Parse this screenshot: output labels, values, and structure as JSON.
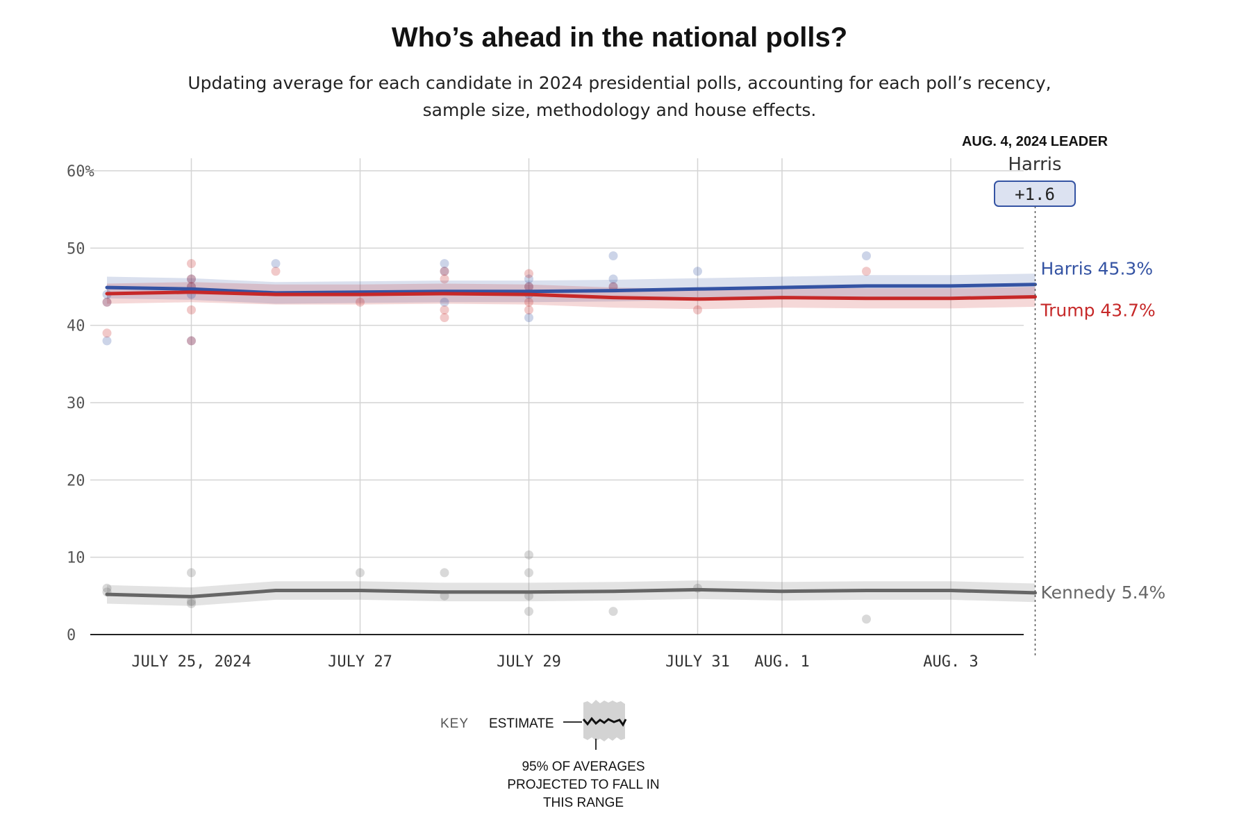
{
  "title": "Who’s ahead in the national polls?",
  "subtitle_line1": "Updating average for each candidate in 2024 presidential polls, accounting for each poll’s recency,",
  "subtitle_line2": "sample size, methodology and house effects.",
  "leader": {
    "date_label": "AUG. 4, 2024 LEADER",
    "name": "Harris",
    "margin": "+1.6"
  },
  "key": {
    "label": "KEY",
    "estimate": "ESTIMATE",
    "range_line1": "95% OF AVERAGES",
    "range_line2": "PROJECTED TO FALL IN",
    "range_line3": "THIS RANGE"
  },
  "colors": {
    "harris": "#3453a3",
    "trump": "#c62828",
    "kennedy": "#666666",
    "grid": "#d4d4d4",
    "badge_fill": "#dce2f1",
    "badge_stroke": "#3453a3"
  },
  "chart_data": {
    "type": "line",
    "ylim": [
      0,
      60
    ],
    "yticks": [
      0,
      10,
      20,
      30,
      40,
      50,
      60
    ],
    "ytick_labels": [
      "0",
      "10",
      "20",
      "30",
      "40",
      "50",
      "60%"
    ],
    "x_start": "2024-07-24",
    "x_end": "2024-08-04",
    "xtick_labels": [
      {
        "date": "2024-07-25",
        "label": "JULY 25, 2024"
      },
      {
        "date": "2024-07-27",
        "label": "JULY 27"
      },
      {
        "date": "2024-07-29",
        "label": "JULY 29"
      },
      {
        "date": "2024-07-31",
        "label": "JULY 31"
      },
      {
        "date": "2024-08-01",
        "label": "AUG. 1"
      },
      {
        "date": "2024-08-03",
        "label": "AUG. 3"
      }
    ],
    "series": [
      {
        "name": "Harris",
        "key": "harris",
        "end_label": "Harris 45.3%",
        "x": [
          "2024-07-24",
          "2024-07-25",
          "2024-07-26",
          "2024-07-27",
          "2024-07-28",
          "2024-07-29",
          "2024-07-30",
          "2024-07-31",
          "2024-08-01",
          "2024-08-02",
          "2024-08-03",
          "2024-08-04"
        ],
        "y": [
          44.9,
          44.7,
          44.2,
          44.3,
          44.4,
          44.4,
          44.5,
          44.7,
          44.9,
          45.1,
          45.1,
          45.3
        ],
        "band": 1.4,
        "polls": [
          [
            "2024-07-24",
            44
          ],
          [
            "2024-07-24",
            38
          ],
          [
            "2024-07-24",
            43
          ],
          [
            "2024-07-25",
            46
          ],
          [
            "2024-07-25",
            45
          ],
          [
            "2024-07-25",
            44
          ],
          [
            "2024-07-25",
            38
          ],
          [
            "2024-07-26",
            48
          ],
          [
            "2024-07-28",
            48
          ],
          [
            "2024-07-28",
            47
          ],
          [
            "2024-07-28",
            43
          ],
          [
            "2024-07-29",
            46
          ],
          [
            "2024-07-29",
            45
          ],
          [
            "2024-07-29",
            44
          ],
          [
            "2024-07-29",
            41
          ],
          [
            "2024-07-30",
            49
          ],
          [
            "2024-07-30",
            46
          ],
          [
            "2024-07-30",
            45
          ],
          [
            "2024-07-31",
            47
          ],
          [
            "2024-08-02",
            49
          ]
        ]
      },
      {
        "name": "Trump",
        "key": "trump",
        "end_label": "Trump 43.7%",
        "x": [
          "2024-07-24",
          "2024-07-25",
          "2024-07-26",
          "2024-07-27",
          "2024-07-28",
          "2024-07-29",
          "2024-07-30",
          "2024-07-31",
          "2024-08-01",
          "2024-08-02",
          "2024-08-03",
          "2024-08-04"
        ],
        "y": [
          44.1,
          44.3,
          44.0,
          44.0,
          44.1,
          44.0,
          43.6,
          43.4,
          43.6,
          43.5,
          43.5,
          43.7
        ],
        "band": 1.3,
        "polls": [
          [
            "2024-07-24",
            43
          ],
          [
            "2024-07-24",
            39
          ],
          [
            "2024-07-25",
            48
          ],
          [
            "2024-07-25",
            46
          ],
          [
            "2024-07-25",
            45
          ],
          [
            "2024-07-25",
            42
          ],
          [
            "2024-07-25",
            38
          ],
          [
            "2024-07-26",
            47
          ],
          [
            "2024-07-27",
            43
          ],
          [
            "2024-07-28",
            47
          ],
          [
            "2024-07-28",
            46
          ],
          [
            "2024-07-28",
            42
          ],
          [
            "2024-07-28",
            41
          ],
          [
            "2024-07-29",
            46.7
          ],
          [
            "2024-07-29",
            45
          ],
          [
            "2024-07-29",
            43
          ],
          [
            "2024-07-29",
            42
          ],
          [
            "2024-07-30",
            45
          ],
          [
            "2024-07-31",
            42
          ],
          [
            "2024-08-02",
            47
          ]
        ]
      },
      {
        "name": "Kennedy",
        "key": "kennedy",
        "end_label": "Kennedy 5.4%",
        "x": [
          "2024-07-24",
          "2024-07-25",
          "2024-07-26",
          "2024-07-27",
          "2024-07-28",
          "2024-07-29",
          "2024-07-30",
          "2024-07-31",
          "2024-08-01",
          "2024-08-02",
          "2024-08-03",
          "2024-08-04"
        ],
        "y": [
          5.2,
          4.9,
          5.7,
          5.7,
          5.5,
          5.5,
          5.6,
          5.8,
          5.6,
          5.7,
          5.7,
          5.4
        ],
        "band": 1.2,
        "polls": [
          [
            "2024-07-24",
            6
          ],
          [
            "2024-07-24",
            5.5
          ],
          [
            "2024-07-25",
            8
          ],
          [
            "2024-07-25",
            4
          ],
          [
            "2024-07-25",
            4.3
          ],
          [
            "2024-07-27",
            8
          ],
          [
            "2024-07-28",
            8
          ],
          [
            "2024-07-28",
            5
          ],
          [
            "2024-07-29",
            10.3
          ],
          [
            "2024-07-29",
            8
          ],
          [
            "2024-07-29",
            5
          ],
          [
            "2024-07-29",
            3
          ],
          [
            "2024-07-30",
            3
          ],
          [
            "2024-07-31",
            6
          ],
          [
            "2024-08-02",
            2
          ]
        ]
      }
    ]
  }
}
